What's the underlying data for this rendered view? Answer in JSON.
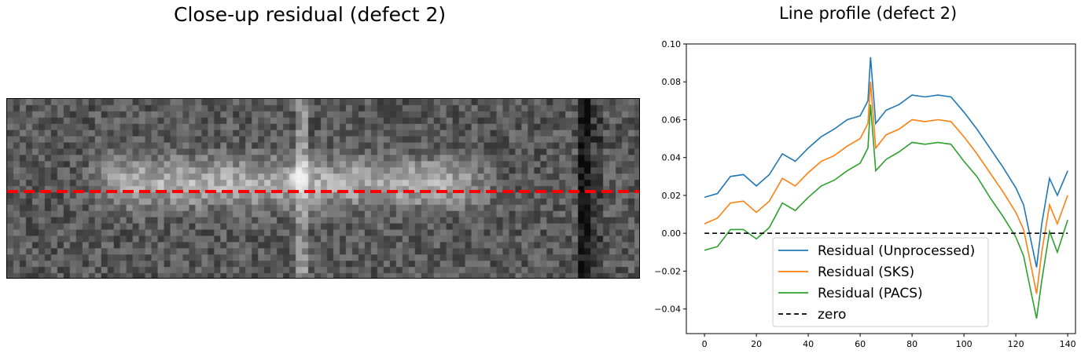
{
  "image_panel": {
    "title": "Close-up residual (defect 2)"
  },
  "profile_panel": {
    "title": "Line profile (defect 2)"
  },
  "chart_data": {
    "type": "line",
    "title": "Line profile (defect 2)",
    "xlabel": "",
    "ylabel": "",
    "xlim": [
      -7,
      143
    ],
    "ylim": [
      -0.053,
      0.1
    ],
    "x_ticks": [
      0,
      20,
      40,
      60,
      80,
      100,
      120,
      140
    ],
    "y_ticks": [
      -0.04,
      -0.02,
      0.0,
      0.02,
      0.04,
      0.06,
      0.08,
      0.1
    ],
    "x_tick_labels": [
      "0",
      "20",
      "40",
      "60",
      "80",
      "100",
      "120",
      "140"
    ],
    "y_tick_labels": [
      "−0.04",
      "−0.02",
      "0.00",
      "0.02",
      "0.04",
      "0.06",
      "0.08",
      "0.10"
    ],
    "grid": false,
    "legend_position": "lower-center",
    "x": [
      0,
      5,
      10,
      15,
      20,
      25,
      30,
      35,
      40,
      45,
      50,
      55,
      60,
      63,
      64,
      66,
      70,
      75,
      80,
      85,
      90,
      95,
      100,
      105,
      110,
      115,
      120,
      123,
      126,
      128,
      130,
      133,
      136,
      140
    ],
    "series": [
      {
        "name": "Residual (Unprocessed)",
        "color": "#1f77b4",
        "values": [
          0.019,
          0.021,
          0.03,
          0.031,
          0.025,
          0.031,
          0.042,
          0.038,
          0.045,
          0.051,
          0.055,
          0.06,
          0.062,
          0.07,
          0.093,
          0.058,
          0.065,
          0.068,
          0.073,
          0.072,
          0.073,
          0.072,
          0.064,
          0.055,
          0.045,
          0.035,
          0.024,
          0.015,
          -0.005,
          -0.018,
          0.005,
          0.029,
          0.02,
          0.033
        ]
      },
      {
        "name": "Residual (SKS)",
        "color": "#ff7f0e",
        "values": [
          0.005,
          0.008,
          0.016,
          0.017,
          0.011,
          0.017,
          0.029,
          0.025,
          0.032,
          0.038,
          0.041,
          0.046,
          0.05,
          0.058,
          0.08,
          0.045,
          0.052,
          0.055,
          0.06,
          0.059,
          0.06,
          0.059,
          0.051,
          0.042,
          0.032,
          0.022,
          0.011,
          0.002,
          -0.018,
          -0.032,
          -0.01,
          0.015,
          0.005,
          0.02
        ]
      },
      {
        "name": "Residual (PACS)",
        "color": "#2ca02c",
        "values": [
          -0.009,
          -0.007,
          0.002,
          0.002,
          -0.003,
          0.003,
          0.016,
          0.012,
          0.019,
          0.025,
          0.028,
          0.033,
          0.037,
          0.045,
          0.068,
          0.033,
          0.039,
          0.043,
          0.048,
          0.047,
          0.048,
          0.047,
          0.038,
          0.03,
          0.019,
          0.009,
          -0.002,
          -0.012,
          -0.032,
          -0.045,
          -0.025,
          0.001,
          -0.01,
          0.007
        ]
      },
      {
        "name": "zero",
        "color": "#000000",
        "dashed": true,
        "values": [
          0,
          0,
          0,
          0,
          0,
          0,
          0,
          0,
          0,
          0,
          0,
          0,
          0,
          0,
          0,
          0,
          0,
          0,
          0,
          0,
          0,
          0,
          0,
          0,
          0,
          0,
          0,
          0,
          0,
          0,
          0,
          0,
          0,
          0
        ]
      }
    ]
  }
}
